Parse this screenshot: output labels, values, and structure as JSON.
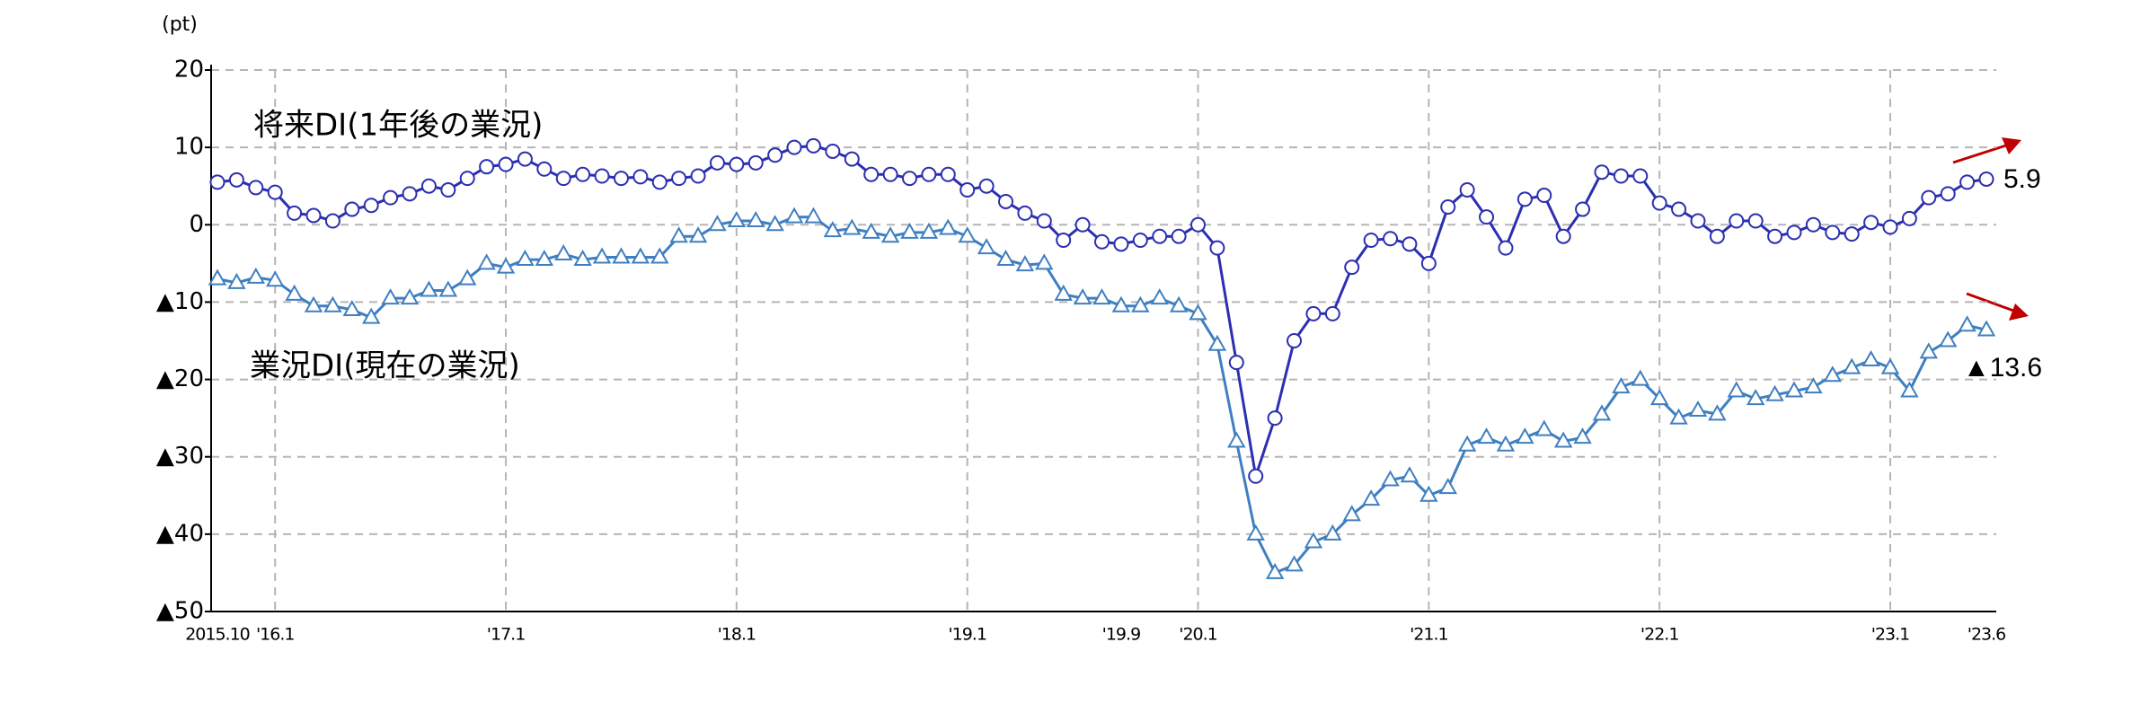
{
  "chart_data": {
    "type": "line",
    "y_unit": "(pt)",
    "categories": [
      "2015.10",
      null,
      null,
      "'16.1",
      null,
      null,
      null,
      null,
      null,
      null,
      null,
      null,
      null,
      null,
      null,
      "'17.1",
      null,
      null,
      null,
      null,
      null,
      null,
      null,
      null,
      null,
      null,
      null,
      "'18.1",
      null,
      null,
      null,
      null,
      null,
      null,
      null,
      null,
      null,
      null,
      null,
      "'19.1",
      null,
      null,
      null,
      null,
      null,
      null,
      null,
      "'19.9",
      null,
      null,
      null,
      "'20.1",
      null,
      null,
      null,
      null,
      null,
      null,
      null,
      null,
      null,
      null,
      null,
      "'21.1",
      null,
      null,
      null,
      null,
      null,
      null,
      null,
      null,
      null,
      null,
      null,
      "'22.1",
      null,
      null,
      null,
      null,
      null,
      null,
      null,
      null,
      null,
      null,
      null,
      "'23.1",
      null,
      null,
      null,
      null,
      "'23.6"
    ],
    "series": [
      {
        "name": "将来DI(1年後の業況)",
        "color": "#2b2fb0",
        "marker": "circle",
        "end_label": "5.9",
        "values": [
          5.5,
          5.8,
          4.8,
          4.2,
          1.5,
          1.2,
          0.5,
          2,
          2.5,
          3.5,
          4,
          5,
          4.5,
          6,
          7.5,
          7.8,
          8.5,
          7.2,
          6,
          6.5,
          6.3,
          6,
          6.2,
          5.5,
          6,
          6.3,
          8,
          7.8,
          8,
          9,
          10,
          10.2,
          9.5,
          8.5,
          6.5,
          6.5,
          6,
          6.5,
          6.5,
          4.5,
          5,
          3,
          1.5,
          0.5,
          -2,
          0,
          -2.2,
          -2.5,
          -2,
          -1.5,
          -1.5,
          0,
          -3,
          -17.8,
          -32.5,
          -25,
          -15,
          -11.5,
          -11.5,
          -5.5,
          -2,
          -1.8,
          -2.5,
          -5,
          2.3,
          4.5,
          1,
          -3,
          3.3,
          3.8,
          -1.5,
          2,
          6.8,
          6.3,
          6.3,
          2.8,
          2,
          0.5,
          -1.5,
          0.5,
          0.5,
          -1.5,
          -1,
          0,
          -1,
          -1.2,
          0.3,
          -0.3,
          0.8,
          3.5,
          4,
          5.5,
          5.9
        ]
      },
      {
        "name": "業況DI(現在の業況)",
        "color": "#3f7fc0",
        "marker": "triangle",
        "end_label": "▲13.6",
        "values": [
          -7,
          -7.5,
          -6.8,
          -7.2,
          -9,
          -10.5,
          -10.5,
          -11,
          -12,
          -9.5,
          -9.5,
          -8.5,
          -8.5,
          -7,
          -5,
          -5.5,
          -4.5,
          -4.5,
          -3.8,
          -4.5,
          -4.2,
          -4.2,
          -4.2,
          -4.2,
          -1.5,
          -1.5,
          0,
          0.5,
          0.5,
          0,
          1,
          1,
          -0.8,
          -0.5,
          -1,
          -1.5,
          -1,
          -1,
          -0.5,
          -1.5,
          -3,
          -4.5,
          -5.2,
          -5,
          -9,
          -9.5,
          -9.5,
          -10.5,
          -10.5,
          -9.5,
          -10.5,
          -11.5,
          -15.5,
          -28,
          -40,
          -45,
          -44,
          -41,
          -40,
          -37.5,
          -35.5,
          -33,
          -32.5,
          -35,
          -34,
          -28.5,
          -27.5,
          -28.5,
          -27.5,
          -26.5,
          -28,
          -27.5,
          -24.5,
          -21,
          -20,
          -22.5,
          -25,
          -24,
          -24.5,
          -21.5,
          -22.5,
          -22,
          -21.5,
          -21,
          -19.5,
          -18.5,
          -17.5,
          -18.5,
          -21.5,
          -16.5,
          -15,
          -13,
          -13.6
        ]
      }
    ],
    "ylim": [
      -50,
      20
    ],
    "yticks": [
      {
        "value": -50,
        "label": "▲50"
      },
      {
        "value": -40,
        "label": "▲40"
      },
      {
        "value": -30,
        "label": "▲30"
      },
      {
        "value": -20,
        "label": "▲20"
      },
      {
        "value": -10,
        "label": "▲10"
      },
      0,
      10,
      20
    ],
    "grid": true
  }
}
